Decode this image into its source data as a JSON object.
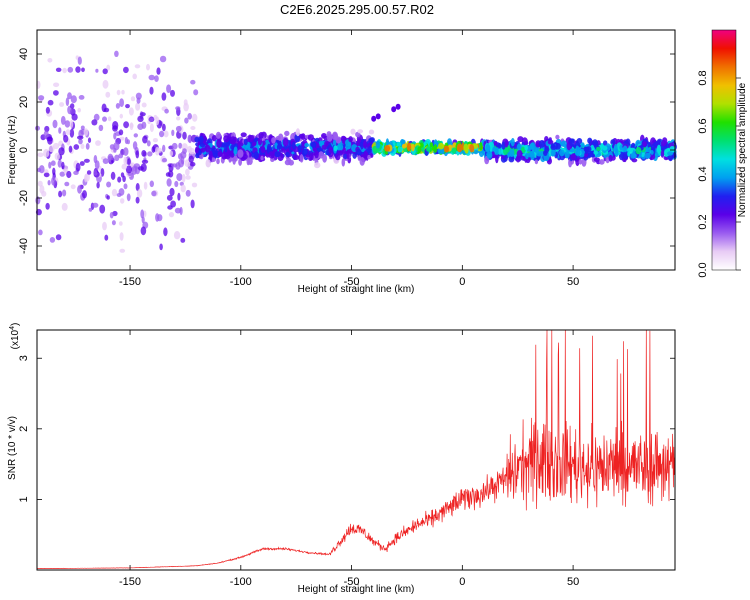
{
  "title": "C2E6.2025.295.00.57.R02",
  "chart_data": [
    {
      "type": "heatmap",
      "name": "spectrogram",
      "xlabel": "Height of straight line (km)",
      "ylabel": "Frequency (Hz)",
      "xlim": [
        -192,
        96
      ],
      "ylim": [
        -50,
        50
      ],
      "xticks": [
        -150,
        -100,
        -50,
        0,
        50
      ],
      "yticks": [
        -40,
        -20,
        0,
        20,
        40
      ],
      "colorbar": {
        "label": "Normalized spectral amplitude",
        "ticks": [
          0.0,
          0.2,
          0.4,
          0.6,
          0.8
        ],
        "range": [
          0,
          1
        ],
        "colors": [
          "#ffffff",
          "#e8ccf5",
          "#9a5cf0",
          "#5a00e8",
          "#2020f0",
          "#00a0f0",
          "#00e0e0",
          "#00e070",
          "#20e000",
          "#b0e000",
          "#f0c000",
          "#f07000",
          "#f01000",
          "#f00080"
        ]
      },
      "bands": [
        {
          "x_range": [
            -192,
            -120
          ],
          "center_hz": 0,
          "spread_hz": 50,
          "peak_amplitude": 0.2
        },
        {
          "x_range": [
            -120,
            -40
          ],
          "center_hz": 1,
          "spread_hz": 8,
          "peak_amplitude": 0.45
        },
        {
          "x_range": [
            -40,
            10
          ],
          "center_hz": 1,
          "spread_hz": 3,
          "peak_amplitude": 0.95
        },
        {
          "x_range": [
            10,
            96
          ],
          "center_hz": 0,
          "spread_hz": 6,
          "peak_amplitude": 0.6
        }
      ]
    },
    {
      "type": "line",
      "name": "snr",
      "xlabel": "Height of straight line (km)",
      "ylabel": "SNR (10 * v/v)",
      "y_multiplier_base": "(x10",
      "y_multiplier_exp": "4",
      "y_multiplier_close": ")",
      "xlim": [
        -192,
        96
      ],
      "ylim": [
        0,
        3.4
      ],
      "xticks": [
        -150,
        -100,
        -50,
        0,
        50
      ],
      "yticks": [
        1,
        2,
        3
      ],
      "color": "#ee2222",
      "envelope": {
        "x": [
          -192,
          -150,
          -120,
          -110,
          -100,
          -90,
          -80,
          -70,
          -60,
          -50,
          -45,
          -40,
          -35,
          -30,
          -25,
          -20,
          -15,
          -10,
          -5,
          0,
          5,
          10,
          15,
          20,
          25,
          30,
          35,
          40,
          50,
          60,
          70,
          80,
          90,
          96
        ],
        "y": [
          0.02,
          0.03,
          0.06,
          0.1,
          0.18,
          0.3,
          0.3,
          0.25,
          0.22,
          0.6,
          0.55,
          0.4,
          0.3,
          0.45,
          0.55,
          0.65,
          0.7,
          0.8,
          0.9,
          1.0,
          1.05,
          1.1,
          1.2,
          1.3,
          1.45,
          1.5,
          1.55,
          1.55,
          1.5,
          1.45,
          1.5,
          1.45,
          1.5,
          1.45
        ]
      }
    }
  ]
}
